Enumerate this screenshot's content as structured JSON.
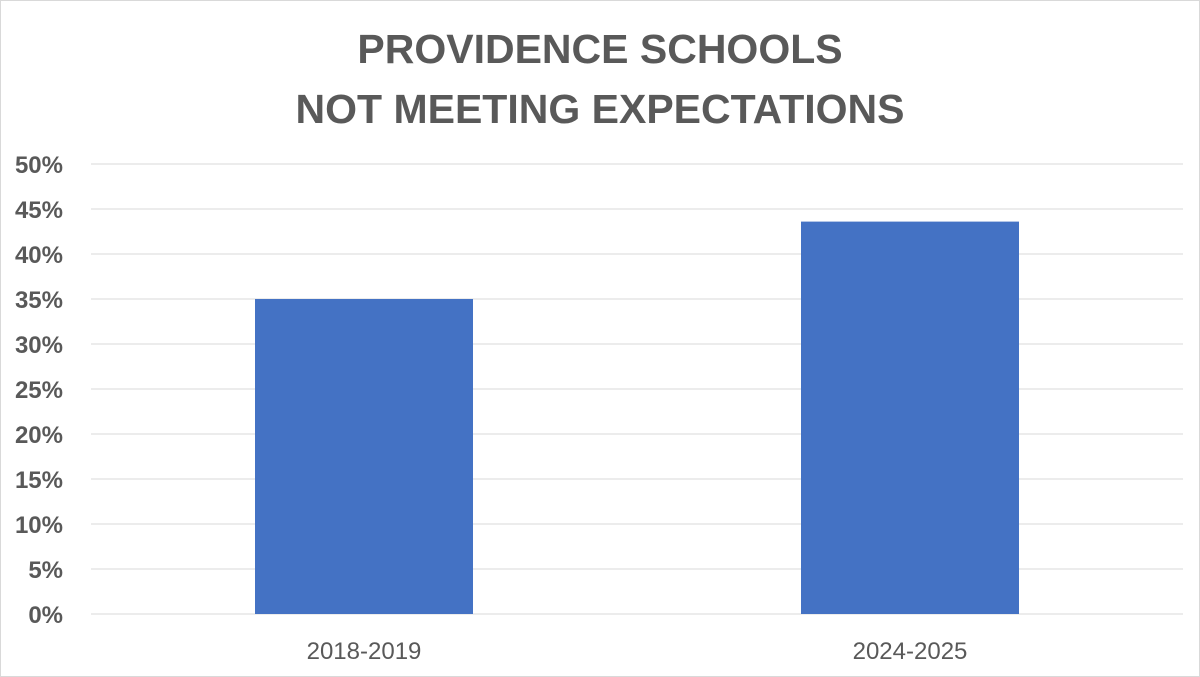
{
  "chart_data": {
    "type": "bar",
    "title": "PROVIDENCE SCHOOLS\nNOT MEETING EXPECTATIONS",
    "title_lines": [
      "PROVIDENCE SCHOOLS",
      "NOT MEETING EXPECTATIONS"
    ],
    "categories": [
      "2018-2019",
      "2024-2025"
    ],
    "values": [
      35,
      43.6
    ],
    "y_tick_labels": [
      "0%",
      "5%",
      "10%",
      "15%",
      "20%",
      "25%",
      "30%",
      "35%",
      "40%",
      "45%",
      "50%"
    ],
    "ylim": [
      0,
      50
    ],
    "y_unit": "%",
    "grid": true,
    "legend": "none",
    "bar_color": "#4472C4",
    "gridline_color": "#d9d9d9",
    "text_color": "#595959"
  }
}
